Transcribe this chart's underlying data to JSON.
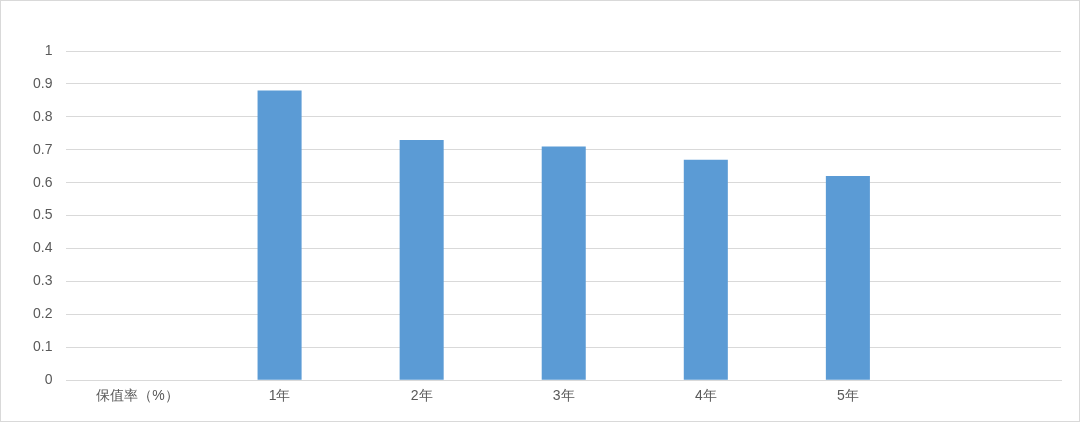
{
  "chart_data": {
    "type": "bar",
    "categories": [
      "保值率（%）",
      "1年",
      "2年",
      "3年",
      "4年",
      "5年",
      null
    ],
    "values": [
      null,
      0.88,
      0.73,
      0.71,
      0.67,
      0.62,
      null
    ],
    "color": "#5b9bd5",
    "ylim": [
      0,
      1
    ],
    "yticks": [
      0,
      0.1,
      0.2,
      0.3,
      0.4,
      0.5,
      0.6,
      0.7,
      0.8,
      0.9,
      1
    ],
    "grid": "y"
  }
}
